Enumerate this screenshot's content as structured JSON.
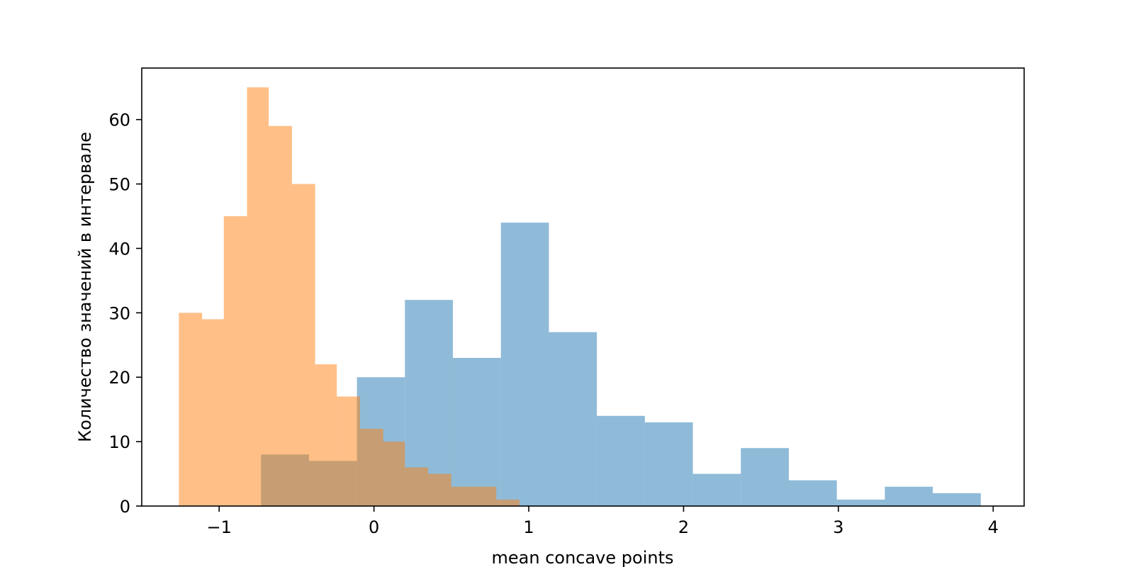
{
  "chart_data": {
    "type": "histogram",
    "xlabel": "mean concave points",
    "ylabel": "Количество значений в интервале",
    "xlim": [
      -1.5,
      4.2
    ],
    "ylim": [
      0,
      68
    ],
    "xticks": [
      {
        "value": -1,
        "label": "−1"
      },
      {
        "value": 0,
        "label": "0"
      },
      {
        "value": 1,
        "label": "1"
      },
      {
        "value": 2,
        "label": "2"
      },
      {
        "value": 3,
        "label": "3"
      },
      {
        "value": 4,
        "label": "4"
      }
    ],
    "yticks": [
      {
        "value": 0,
        "label": "0"
      },
      {
        "value": 10,
        "label": "10"
      },
      {
        "value": 20,
        "label": "20"
      },
      {
        "value": 30,
        "label": "30"
      },
      {
        "value": 40,
        "label": "40"
      },
      {
        "value": 50,
        "label": "50"
      },
      {
        "value": 60,
        "label": "60"
      }
    ],
    "grid": false,
    "series": [
      {
        "color": "#1f77b4",
        "alpha": 0.5,
        "bin_edges": [
          -0.73,
          -0.42,
          -0.11,
          0.2,
          0.51,
          0.82,
          1.13,
          1.44,
          1.75,
          2.06,
          2.37,
          2.68,
          2.99,
          3.3,
          3.61,
          3.92
        ],
        "counts": [
          8,
          7,
          20,
          32,
          23,
          44,
          27,
          14,
          13,
          5,
          9,
          4,
          1,
          3,
          2
        ]
      },
      {
        "color": "#ff7f0e",
        "alpha": 0.5,
        "bin_edges": [
          -1.26,
          -1.11,
          -0.97,
          -0.82,
          -0.68,
          -0.53,
          -0.38,
          -0.24,
          -0.09,
          0.06,
          0.2,
          0.35,
          0.5,
          0.64,
          0.79,
          0.94
        ],
        "counts": [
          30,
          29,
          45,
          65,
          59,
          50,
          22,
          17,
          12,
          10,
          6,
          5,
          3,
          3,
          1
        ]
      }
    ]
  }
}
